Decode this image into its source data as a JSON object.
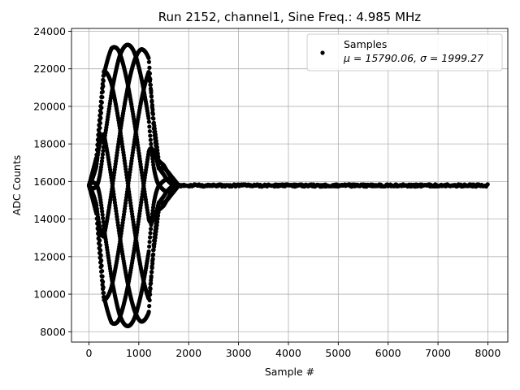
{
  "chart_data": {
    "type": "scatter",
    "title": "Run 2152, channel1, Sine Freq.: 4.985 MHz",
    "xlabel": "Sample #",
    "ylabel": "ADC Counts",
    "xlim": [
      -350,
      8400
    ],
    "ylim": [
      7450,
      24150
    ],
    "xticks": [
      0,
      1000,
      2000,
      3000,
      4000,
      5000,
      6000,
      7000,
      8000
    ],
    "yticks": [
      8000,
      10000,
      12000,
      14000,
      16000,
      18000,
      20000,
      22000,
      24000
    ],
    "grid": true,
    "legend": {
      "placement": "top-right",
      "entries": [
        {
          "label": "Samples",
          "stats": "μ = 15790.06, σ = 1999.27"
        }
      ]
    },
    "series": [
      {
        "name": "Samples",
        "color": "#000000",
        "marker": "circle",
        "n_samples": 8000,
        "baseline": 15790,
        "pulse": {
          "x": [
            0,
            150,
            300,
            450,
            600,
            750,
            900,
            1050,
            1200,
            1300,
            1400,
            1500,
            1650,
            1800
          ],
          "amplitude": [
            0,
            1500,
            6500,
            7300,
            7550,
            7500,
            7450,
            7300,
            7000,
            3500,
            1300,
            1100,
            500,
            0
          ]
        },
        "tail": {
          "x": [
            1800,
            8000
          ],
          "noise": 60
        }
      }
    ]
  }
}
